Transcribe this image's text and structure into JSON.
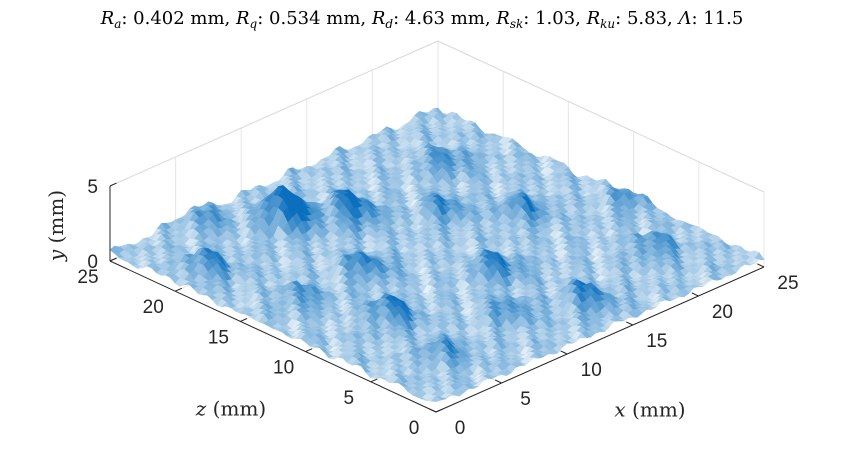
{
  "chart_data": {
    "type": "surface",
    "title_parts": [
      {
        "sym": "R",
        "sub": "a",
        "value": ": 0.402 mm, "
      },
      {
        "sym": "R",
        "sub": "q",
        "value": ": 0.534 mm, "
      },
      {
        "sym": "R",
        "sub": "d",
        "value": ": 4.63 mm, "
      },
      {
        "sym": "R",
        "sub": "sk",
        "value": ": 1.03, "
      },
      {
        "sym": "R",
        "sub": "ku",
        "value": ": 5.83, "
      },
      {
        "sym": "Λ",
        "sub": "",
        "value": ": 11.5"
      }
    ],
    "xlabel": {
      "var": "x",
      "unit": " (mm)"
    },
    "ylabel": {
      "var": "y",
      "unit": " (mm)"
    },
    "zlabel": {
      "var": "z",
      "unit": " (mm)"
    },
    "xlim": [
      0,
      25
    ],
    "zlim": [
      0,
      25
    ],
    "ylim": [
      0,
      5
    ],
    "x_ticks": [
      "0",
      "5",
      "10",
      "15",
      "20",
      "25"
    ],
    "z_ticks": [
      "0",
      "5",
      "10",
      "15",
      "20",
      "25"
    ],
    "y_ticks": [
      "0",
      "5"
    ],
    "grid": true,
    "colormap": [
      "#ffffff",
      "#0b6fbd"
    ],
    "peaks": [
      {
        "x": 9,
        "z": 21,
        "y": 3.0
      },
      {
        "x": 12,
        "z": 19,
        "y": 2.2
      },
      {
        "x": 5,
        "z": 9,
        "y": 1.9
      },
      {
        "x": 13,
        "z": 9,
        "y": 1.9
      },
      {
        "x": 14,
        "z": 3,
        "y": 1.8
      },
      {
        "x": 8,
        "z": 14,
        "y": 1.8
      },
      {
        "x": 19,
        "z": 13,
        "y": 1.7
      },
      {
        "x": 2,
        "z": 20,
        "y": 1.7
      },
      {
        "x": 20,
        "z": 20,
        "y": 1.6
      },
      {
        "x": 16,
        "z": 16,
        "y": 1.6
      },
      {
        "x": 4,
        "z": 4,
        "y": 1.5
      },
      {
        "x": 21,
        "z": 5,
        "y": 1.5
      },
      {
        "x": 3,
        "z": 14,
        "y": 1.4
      },
      {
        "x": 10,
        "z": 5,
        "y": 1.5
      },
      {
        "x": 24,
        "z": 10,
        "y": 1.3
      },
      {
        "x": 6,
        "z": 24,
        "y": 1.4
      }
    ]
  }
}
